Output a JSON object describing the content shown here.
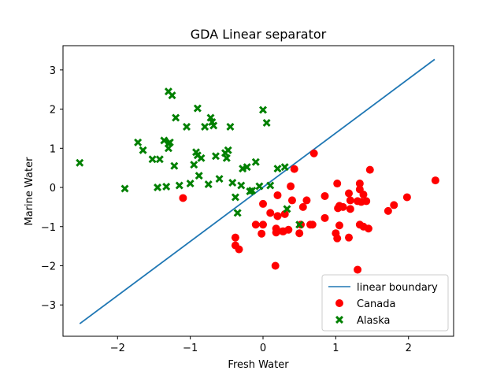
{
  "chart_data": {
    "type": "scatter",
    "title": "GDA Linear separator",
    "xlabel": "Fresh Water",
    "ylabel": "Marine Water",
    "xlim": [
      -2.75,
      2.62
    ],
    "ylim": [
      -3.8,
      3.62
    ],
    "xticks": [
      -2,
      -1,
      0,
      1,
      2
    ],
    "yticks": [
      -3,
      -2,
      -1,
      0,
      1,
      2,
      3
    ],
    "xtick_labels": [
      "−2",
      "−1",
      "0",
      "1",
      "2"
    ],
    "ytick_labels": [
      "−3",
      "−2",
      "−1",
      "0",
      "1",
      "2",
      "3"
    ],
    "grid": false,
    "legend_position": "lower-right",
    "colors": {
      "boundary": "#1f77b4",
      "canada": "#ff0000",
      "alaska": "#008000"
    },
    "series": [
      {
        "name": "linear boundary",
        "type": "line",
        "x": [
          -2.52,
          2.36
        ],
        "y": [
          -3.48,
          3.27
        ]
      },
      {
        "name": "Canada",
        "type": "scatter",
        "marker": "circle",
        "x": [
          -1.1,
          0.43,
          0.7,
          0.38,
          0.85,
          1.02,
          1.18,
          1.33,
          1.47,
          0.0,
          0.2,
          0.2,
          0.3,
          0.4,
          0.55,
          0.6,
          1.1,
          1.2,
          1.35,
          1.38,
          0.0,
          0.1,
          0.18,
          0.28,
          0.5,
          0.65,
          0.85,
          1.03,
          1.05,
          1.2,
          1.3,
          1.33,
          1.42,
          1.72,
          1.8,
          1.98,
          2.37,
          -0.1,
          -0.02,
          0.18,
          0.2,
          0.27,
          0.35,
          0.52,
          0.68,
          1.0,
          1.02,
          1.05,
          1.18,
          1.33,
          1.38,
          1.45,
          -0.38,
          -0.38,
          -0.33,
          0.17,
          1.3
        ],
        "y": [
          -0.27,
          0.47,
          0.87,
          0.03,
          -0.22,
          0.1,
          -0.15,
          0.1,
          0.45,
          -0.42,
          -0.2,
          -0.73,
          -0.68,
          -0.33,
          -0.5,
          -0.33,
          -0.5,
          -0.33,
          -0.37,
          -0.18,
          -0.95,
          -0.65,
          -1.05,
          -1.12,
          -1.17,
          -0.95,
          -0.78,
          -0.53,
          -0.47,
          -0.55,
          -0.35,
          -0.05,
          -0.35,
          -0.6,
          -0.45,
          -0.25,
          0.18,
          -0.95,
          -1.18,
          -1.15,
          -0.73,
          -1.12,
          -1.08,
          -0.95,
          -0.95,
          -1.17,
          -1.3,
          -0.97,
          -1.28,
          -0.95,
          -1.0,
          -1.05,
          -1.28,
          -1.48,
          -1.58,
          -2.0,
          -2.1
        ]
      },
      {
        "name": "Alaska",
        "type": "scatter",
        "marker": "x-filled",
        "x": [
          -2.52,
          -1.9,
          -1.72,
          -1.65,
          -1.52,
          -1.45,
          -1.42,
          -1.36,
          -1.33,
          -1.3,
          -1.3,
          -1.3,
          -1.28,
          -1.25,
          -1.22,
          -1.2,
          -1.15,
          -1.05,
          -1.0,
          -0.95,
          -0.92,
          -0.9,
          -0.9,
          -0.88,
          -0.85,
          -0.8,
          -0.75,
          -0.72,
          -0.7,
          -0.68,
          -0.65,
          -0.6,
          -0.52,
          -0.5,
          -0.48,
          -0.45,
          -0.42,
          -0.38,
          -0.35,
          -0.3,
          -0.28,
          -0.22,
          -0.18,
          -0.15,
          -0.1,
          -0.05,
          0.0,
          0.05,
          0.1,
          0.2,
          0.3,
          0.33,
          0.5
        ],
        "y": [
          0.63,
          -0.03,
          1.15,
          0.95,
          0.72,
          0.0,
          0.72,
          1.2,
          0.02,
          1.12,
          1.0,
          2.45,
          1.15,
          2.35,
          0.55,
          1.78,
          0.05,
          1.55,
          0.1,
          0.58,
          0.9,
          2.02,
          0.82,
          0.3,
          0.75,
          1.55,
          0.08,
          1.78,
          1.67,
          1.58,
          0.8,
          0.22,
          0.88,
          0.75,
          0.95,
          1.55,
          0.12,
          -0.25,
          -0.65,
          0.05,
          0.48,
          0.52,
          -0.1,
          -0.08,
          0.65,
          0.03,
          1.98,
          1.65,
          0.05,
          0.48,
          0.52,
          -0.55,
          -0.95
        ]
      }
    ]
  }
}
